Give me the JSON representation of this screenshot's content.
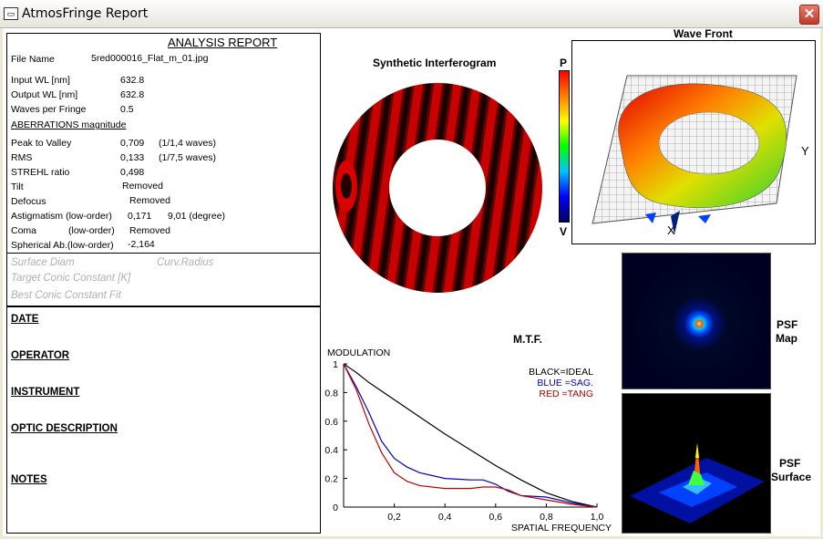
{
  "window": {
    "title": "AtmosFringe  Report",
    "close_label": "✕",
    "app_icon": "window-icon"
  },
  "report": {
    "heading": "ANALYSIS  REPORT",
    "file_label": "File Name",
    "file_value": "5red000016_Flat_m_01.jpg",
    "input_wl_label": "Input  WL [nm]",
    "input_wl_value": "632.8",
    "output_wl_label": "Output WL [nm]",
    "output_wl_value": "632.8",
    "waves_label": "Waves per Fringe",
    "waves_value": "0.5",
    "aberr_heading": "ABERRATIONS magnitude",
    "ptv_label": "Peak to Valley",
    "ptv_value": "0,709",
    "ptv_waves": "(1/1,4 waves)",
    "rms_label": "RMS",
    "rms_value": "0,133",
    "rms_waves": "(1/7,5 waves)",
    "strehl_label": "STREHL ratio",
    "strehl_value": "0,498",
    "tilt_label": "Tilt",
    "tilt_value": "Removed",
    "defocus_label": "Defocus",
    "defocus_value": "Removed",
    "astig_label": "Astigmatism  (low-order)",
    "astig_value": "0,171",
    "astig_angle": "9,01  (degree)",
    "coma_label": "Coma",
    "coma_order": "(low-order)",
    "coma_value": "Removed",
    "spher_label": "Spherical Ab.(low-order)",
    "spher_value": "-2,164",
    "surface_diam": "Surface Diam",
    "curv_radius": "Curv.Radius",
    "target_conic": "Target Conic Constant [K]",
    "best_conic": "Best Conic Constant Fit"
  },
  "info": {
    "date": "DATE",
    "operator": "OPERATOR",
    "instrument": "INSTRUMENT",
    "optic": "OPTIC DESCRIPTION",
    "notes": "NOTES"
  },
  "interferogram": {
    "title": "Synthetic Interferogram"
  },
  "colorbar": {
    "top_label": "P",
    "bottom_label": "V"
  },
  "wavefront": {
    "title": "Wave Front",
    "x_label": "X",
    "y_label": "Y"
  },
  "psf": {
    "map_label_1": "PSF",
    "map_label_2": "Map",
    "surface_label_1": "PSF",
    "surface_label_2": "Surface"
  },
  "mtf": {
    "title": "M.T.F.",
    "legend": [
      "BLACK=IDEAL",
      "BLUE  =SAG.",
      "RED    =TANG"
    ],
    "legend_colors": [
      "#000000",
      "#0000c0",
      "#c00000"
    ]
  },
  "chart_data": {
    "type": "line",
    "title": "M.T.F.",
    "xlabel": "SPATIAL FREQUENCY",
    "ylabel": "MODULATION",
    "xlim": [
      0,
      1.0
    ],
    "ylim": [
      0,
      1
    ],
    "x_ticks": [
      "0,2",
      "0,4",
      "0,6",
      "0,8",
      "1,0"
    ],
    "y_ticks": [
      "0",
      "0.2",
      "0.4",
      "0.6",
      "0.8",
      "1"
    ],
    "series": [
      {
        "name": "IDEAL",
        "color": "#000000",
        "x": [
          0,
          0.05,
          0.1,
          0.2,
          0.3,
          0.4,
          0.5,
          0.6,
          0.7,
          0.8,
          0.9,
          1.0
        ],
        "y": [
          1.0,
          0.94,
          0.87,
          0.75,
          0.63,
          0.51,
          0.4,
          0.29,
          0.19,
          0.1,
          0.04,
          0.0
        ]
      },
      {
        "name": "SAG.",
        "color": "#0000c0",
        "x": [
          0,
          0.05,
          0.1,
          0.15,
          0.2,
          0.25,
          0.3,
          0.4,
          0.5,
          0.55,
          0.6,
          0.65,
          0.7,
          0.8,
          0.9,
          1.0
        ],
        "y": [
          1.0,
          0.84,
          0.66,
          0.46,
          0.34,
          0.28,
          0.24,
          0.2,
          0.19,
          0.19,
          0.16,
          0.11,
          0.08,
          0.07,
          0.03,
          0.0
        ]
      },
      {
        "name": "TANG",
        "color": "#c00000",
        "x": [
          0,
          0.05,
          0.1,
          0.15,
          0.2,
          0.25,
          0.3,
          0.4,
          0.5,
          0.55,
          0.6,
          0.65,
          0.7,
          0.8,
          0.9,
          1.0
        ],
        "y": [
          1.0,
          0.82,
          0.58,
          0.38,
          0.24,
          0.18,
          0.15,
          0.13,
          0.13,
          0.14,
          0.14,
          0.12,
          0.08,
          0.05,
          0.02,
          0.0
        ]
      }
    ]
  }
}
